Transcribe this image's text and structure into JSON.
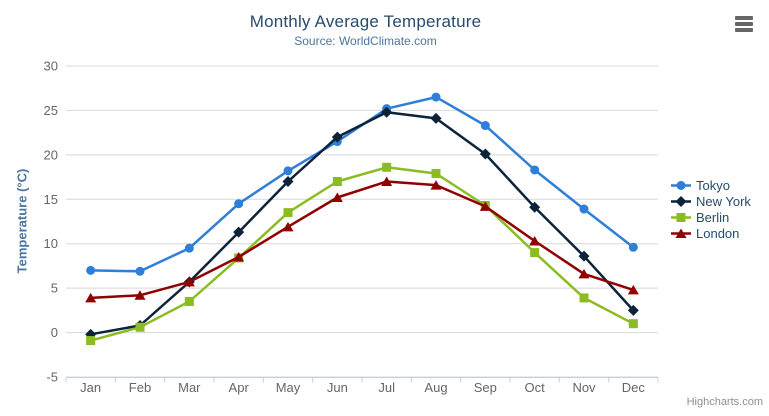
{
  "header": {
    "title": "Monthly Average Temperature",
    "subtitle": "Source: WorldClimate.com"
  },
  "chart_data": {
    "type": "line",
    "title": "Monthly Average Temperature",
    "subtitle": "Source: WorldClimate.com",
    "categories": [
      "Jan",
      "Feb",
      "Mar",
      "Apr",
      "May",
      "Jun",
      "Jul",
      "Aug",
      "Sep",
      "Oct",
      "Nov",
      "Dec"
    ],
    "series": [
      {
        "name": "Tokyo",
        "color": "#2f7ed8",
        "marker": "circle",
        "values": [
          7.0,
          6.9,
          9.5,
          14.5,
          18.2,
          21.5,
          25.2,
          26.5,
          23.3,
          18.3,
          13.9,
          9.6
        ]
      },
      {
        "name": "New York",
        "color": "#0d233a",
        "marker": "diamond",
        "values": [
          -0.2,
          0.8,
          5.7,
          11.3,
          17.0,
          22.0,
          24.8,
          24.1,
          20.1,
          14.1,
          8.6,
          2.5
        ]
      },
      {
        "name": "Berlin",
        "color": "#8bbc21",
        "marker": "square",
        "values": [
          -0.9,
          0.6,
          3.5,
          8.4,
          13.5,
          17.0,
          18.6,
          17.9,
          14.3,
          9.0,
          3.9,
          1.0
        ]
      },
      {
        "name": "London",
        "color": "#910000",
        "marker": "triangle",
        "values": [
          3.9,
          4.2,
          5.7,
          8.5,
          11.9,
          15.2,
          17.0,
          16.6,
          14.2,
          10.3,
          6.6,
          4.8
        ]
      }
    ],
    "xlabel": "",
    "ylabel": "Temperature (°C)",
    "ylim": [
      -5,
      30
    ],
    "ytick_step": 5,
    "grid": true,
    "legend_position": "right"
  },
  "legend": {
    "items": [
      "Tokyo",
      "New York",
      "Berlin",
      "London"
    ]
  },
  "menu": {
    "icon": "hamburger-icon"
  },
  "credits": {
    "label": "Highcharts.com"
  },
  "colors": {
    "title": "#274b6d",
    "subtitle": "#4d759e",
    "axis_title": "#4d759e",
    "axis_labels": "#666666",
    "grid": "#d8d8d8",
    "axis_line": "#c0d0e0",
    "tick": "#c0d0e0",
    "legend_text": "#274b6d",
    "credits": "#909090",
    "menu_icon": "#666666",
    "background": "#ffffff"
  }
}
